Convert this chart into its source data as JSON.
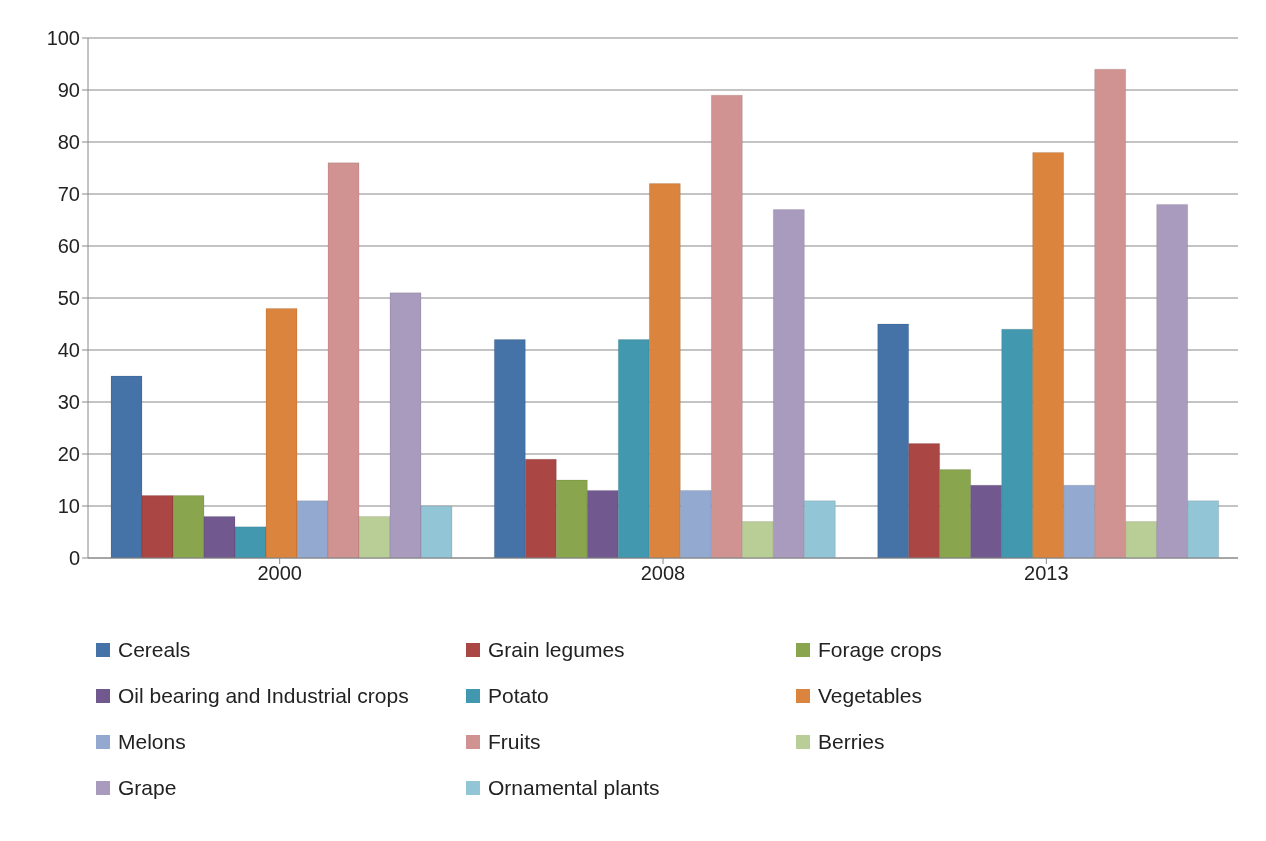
{
  "chart_data": {
    "type": "bar",
    "categories": [
      "2000",
      "2008",
      "2013"
    ],
    "series": [
      {
        "name": "Cereals",
        "color": "#4572a7",
        "values": [
          35,
          42,
          45
        ]
      },
      {
        "name": "Grain legumes",
        "color": "#aa4643",
        "values": [
          12,
          19,
          22
        ]
      },
      {
        "name": "Forage crops",
        "color": "#89a54e",
        "values": [
          12,
          15,
          17
        ]
      },
      {
        "name": "Oil bearing and Industrial crops",
        "color": "#71588f",
        "values": [
          8,
          13,
          14
        ]
      },
      {
        "name": "Potato",
        "color": "#4198af",
        "values": [
          6,
          42,
          44
        ]
      },
      {
        "name": "Vegetables",
        "color": "#db843d",
        "values": [
          48,
          72,
          78
        ]
      },
      {
        "name": "Melons",
        "color": "#93a9cf",
        "values": [
          11,
          13,
          14
        ]
      },
      {
        "name": "Fruits",
        "color": "#d19392",
        "values": [
          76,
          89,
          94
        ]
      },
      {
        "name": "Berries",
        "color": "#b9cd96",
        "values": [
          8,
          7,
          7
        ]
      },
      {
        "name": "Grape",
        "color": "#a99bbd",
        "values": [
          51,
          67,
          68
        ]
      },
      {
        "name": "Ornamental plants",
        "color": "#92c5d5",
        "values": [
          10,
          11,
          11
        ]
      }
    ],
    "ylim": [
      0,
      100
    ],
    "yticks": [
      0,
      10,
      20,
      30,
      40,
      50,
      60,
      70,
      80,
      90,
      100
    ],
    "grid": "y",
    "legend": "bottom"
  }
}
